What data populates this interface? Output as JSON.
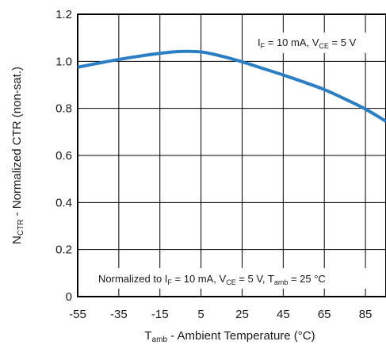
{
  "chart_data": {
    "type": "line",
    "x_axis": {
      "label_main": "T",
      "label_sub": "amb",
      "label_rest": " - Ambient Temperature (°C)",
      "range": [
        -55,
        95
      ],
      "ticks": [
        -55,
        -35,
        -15,
        5,
        25,
        45,
        65,
        85
      ],
      "tick_labels": [
        "-55",
        "-35",
        "-15",
        "5",
        "25",
        "45",
        "65",
        "85"
      ]
    },
    "y_axis": {
      "label_main": "N",
      "label_sub": "CTR",
      "label_rest": " - Normalized CTR (non-sat.)",
      "range": [
        0,
        1.2
      ],
      "ticks": [
        0,
        0.2,
        0.4,
        0.6,
        0.8,
        1.0,
        1.2
      ],
      "tick_labels": [
        "0",
        "0.2",
        "0.4",
        "0.6",
        "0.8",
        "1.0",
        "1.2"
      ]
    },
    "grid": true,
    "series": [
      {
        "color": "#2a7fc4",
        "x": [
          -55,
          -45,
          -35,
          -25,
          -15,
          -5,
          5,
          15,
          25,
          35,
          45,
          55,
          65,
          75,
          85,
          95
        ],
        "y": [
          0.975,
          0.992,
          1.008,
          1.022,
          1.034,
          1.042,
          1.04,
          1.022,
          0.998,
          0.97,
          0.942,
          0.912,
          0.88,
          0.84,
          0.797,
          0.745
        ]
      }
    ],
    "annotations": {
      "top_right": {
        "p1": "I",
        "p1_sub": "F",
        "p2": " = 10 mA, V",
        "p2_sub": "CE",
        "p3": " = 5 V"
      },
      "bottom": {
        "p1": "Normalized to I",
        "p1_sub": "F",
        "p2": " = 10 mA, V",
        "p2_sub": "CE",
        "p3": " = 5 V, T",
        "p3_sub": "amb",
        "p4": " = 25 °C"
      }
    }
  }
}
